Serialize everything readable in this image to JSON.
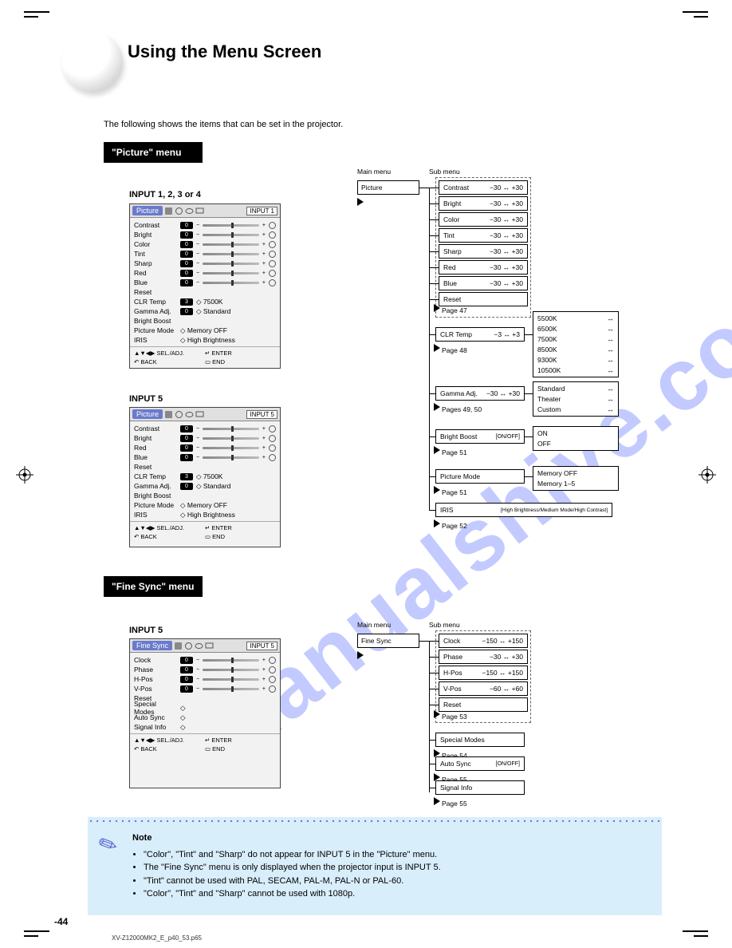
{
  "page": {
    "title": "Using the Menu Screen",
    "subtitle": "The following shows the items that can be set in the projector.",
    "number": "-44",
    "scan_path": "XV-Z12000MK2_E_p40_53.p65"
  },
  "watermark": "manualshive.com",
  "sections": {
    "picture": {
      "label": "\"Picture\" menu"
    },
    "finesync": {
      "label": "\"Fine Sync\" menu"
    }
  },
  "osd1": {
    "caption": "INPUT 1, 2, 3 or 4",
    "tab": "Picture",
    "input": "INPUT 1",
    "rows_sliders": [
      "Contrast",
      "Bright",
      "Color",
      "Tint",
      "Sharp",
      "Red",
      "Blue"
    ],
    "rows_reset": "Reset",
    "rows_kv": [
      {
        "k": "CLR Temp",
        "v": "3",
        "d": "7500K"
      },
      {
        "k": "Gamma Adj.",
        "v": "0",
        "d": "Standard"
      },
      {
        "k": "Bright Boost",
        "v": "",
        "d": ""
      },
      {
        "k": "Picture Mode",
        "v": "",
        "d": "Memory OFF"
      },
      {
        "k": "IRIS",
        "v": "",
        "d": "High Brightness"
      }
    ],
    "footer": {
      "a": "▲▼◀▶ SEL./ADJ.",
      "b": "↵ ENTER",
      "c": "↶ BACK",
      "d": "▭ END"
    }
  },
  "osd2": {
    "caption": "INPUT 5",
    "tab": "Picture",
    "input": "INPUT 5",
    "rows_sliders": [
      "Contrast",
      "Bright",
      "Red",
      "Blue"
    ],
    "rows_reset": "Reset",
    "rows_kv": [
      {
        "k": "CLR Temp",
        "v": "3",
        "d": "7500K"
      },
      {
        "k": "Gamma Adj.",
        "v": "0",
        "d": "Standard"
      },
      {
        "k": "Bright Boost",
        "v": "",
        "d": ""
      },
      {
        "k": "Picture Mode",
        "v": "",
        "d": "Memory OFF"
      },
      {
        "k": "IRIS",
        "v": "",
        "d": "High Brightness"
      }
    ],
    "footer": {
      "a": "▲▼◀▶ SEL./ADJ.",
      "b": "↵ ENTER",
      "c": "↶ BACK",
      "d": "▭ END"
    }
  },
  "osd3": {
    "caption": "INPUT 5",
    "tab": "Fine Sync",
    "input": "INPUT 5",
    "rows_sliders": [
      "Clock",
      "Phase",
      "H-Pos",
      "V-Pos"
    ],
    "rows_reset": "Reset",
    "rows_extra": [
      "Special Modes",
      "Auto Sync",
      "Signal Info"
    ],
    "footer": {
      "a": "▲▼◀▶ SEL./ADJ.",
      "b": "↵ ENTER",
      "c": "↶ BACK",
      "d": "▭ END"
    }
  },
  "flow1": {
    "main": "Main menu",
    "sub": "Sub menu",
    "items": [
      {
        "l": "Picture",
        "children": [
          {
            "l": "Contrast",
            "r": "−30 ↔ +30"
          },
          {
            "l": "Bright",
            "r": "−30 ↔ +30"
          },
          {
            "l": "Color",
            "r": "−30 ↔ +30"
          },
          {
            "l": "Tint",
            "r": "−30 ↔ +30"
          },
          {
            "l": "Sharp",
            "r": "−30 ↔ +30"
          },
          {
            "l": "Red",
            "r": "−30 ↔ +30"
          },
          {
            "l": "Blue",
            "r": "−30 ↔ +30"
          },
          {
            "l": "Reset",
            "r": ""
          }
        ],
        "pg": "Page 47"
      },
      {
        "l": "CLR Temp",
        "r": "−3 ↔ +3",
        "sub": [
          {
            "l": "5500K",
            "r": "↔"
          },
          {
            "l": "6500K",
            "r": "↔"
          },
          {
            "l": "7500K",
            "r": "↔"
          },
          {
            "l": "8500K",
            "r": "↔"
          },
          {
            "l": "9300K",
            "r": "↔"
          },
          {
            "l": "10500K",
            "r": "↔"
          }
        ],
        "pg": "Page 48"
      },
      {
        "l": "Gamma Adj.",
        "r": "−30 ↔ +30",
        "sub": [
          {
            "l": "Standard",
            "r": "↔"
          },
          {
            "l": "Theater",
            "r": "↔"
          },
          {
            "l": "Custom",
            "r": "↔"
          }
        ],
        "pg": "Pages 49, 50"
      },
      {
        "l": "Bright Boost",
        "r": "[ON/OFF]",
        "sub": [
          {
            "l": "ON",
            "r": ""
          },
          {
            "l": "OFF",
            "r": ""
          }
        ],
        "pg": "Page 51"
      },
      {
        "l": "Picture Mode",
        "r": "",
        "sub": [
          {
            "l": "Memory OFF",
            "r": ""
          },
          {
            "l": "Memory 1–5",
            "r": ""
          }
        ],
        "pg": "Page 51"
      },
      {
        "l": "IRIS",
        "r": "[High Brightness/Medium Mode/High Contrast]",
        "pg": "Page 52"
      }
    ]
  },
  "flow2": {
    "main": "Main menu",
    "sub": "Sub menu",
    "items": {
      "root": "Fine Sync",
      "group": [
        {
          "l": "Clock",
          "r": "−150 ↔ +150"
        },
        {
          "l": "Phase",
          "r": "−30 ↔ +30"
        },
        {
          "l": "H-Pos",
          "r": "−150 ↔ +150"
        },
        {
          "l": "V-Pos",
          "r": "−60 ↔ +60"
        },
        {
          "l": "Reset",
          "r": ""
        }
      ],
      "group_pg": "Page 53",
      "tail": [
        {
          "l": "Special Modes",
          "pg": "Page 54"
        },
        {
          "l": "Auto Sync",
          "r": "[ON/OFF]",
          "pg": "Page 55"
        },
        {
          "l": "Signal Info",
          "pg": "Page 55"
        }
      ]
    }
  },
  "note": {
    "title": "Note",
    "bullets": [
      "\"Color\", \"Tint\" and \"Sharp\" do not appear for INPUT 5 in the \"Picture\" menu.",
      "The \"Fine Sync\" menu is only displayed when the projector input is INPUT 5.",
      "\"Tint\" cannot be used with PAL, SECAM, PAL-M, PAL-N or PAL-60.",
      "\"Color\", \"Tint\" and \"Sharp\" cannot be used with 1080p."
    ]
  },
  "colors": {
    "accent_tab": "#6a7acc",
    "note_bg": "#d9eefb",
    "watermark": "#7a8cff"
  }
}
